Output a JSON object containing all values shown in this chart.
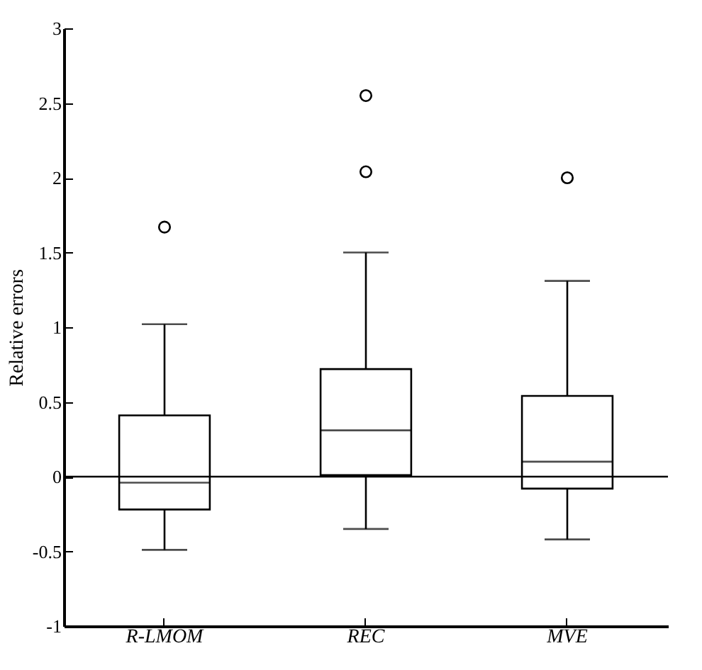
{
  "chart_data": {
    "type": "box",
    "ylabel": "Relative errors",
    "categories": [
      "R-LMOM",
      "REC",
      "MVE"
    ],
    "boxes": [
      {
        "low": -0.49,
        "q1": -0.22,
        "median": -0.04,
        "q3": 0.41,
        "high": 1.02,
        "outliers": [
          1.67
        ]
      },
      {
        "low": -0.35,
        "q1": 0.01,
        "median": 0.31,
        "q3": 0.72,
        "high": 1.5,
        "outliers": [
          2.04,
          2.55
        ]
      },
      {
        "low": -0.42,
        "q1": -0.08,
        "median": 0.1,
        "q3": 0.54,
        "high": 1.31,
        "outliers": [
          2.0
        ]
      }
    ],
    "ylim": [
      -1,
      3
    ],
    "yticks": [
      -1,
      -0.5,
      0,
      0.5,
      1,
      1.5,
      2,
      2.5,
      3
    ],
    "ref_lines": [
      {
        "axis": "y",
        "value": 0,
        "color": "#000000"
      }
    ],
    "marker": "circle",
    "grid": false
  }
}
